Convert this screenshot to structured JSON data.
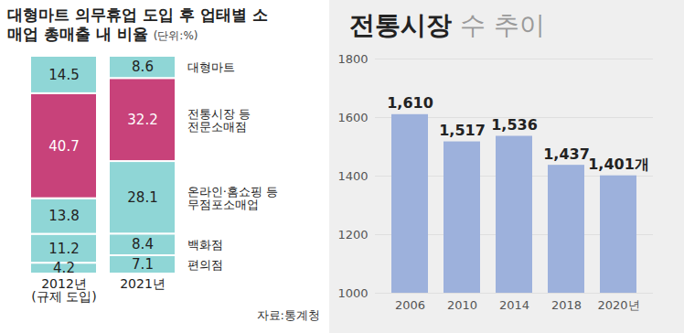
{
  "chart_data": [
    {
      "type": "bar",
      "stacked": true,
      "title": "대형마트 의무휴업 도입 후 업태별 소매업 총매출 내 비율",
      "subtitle": "(단위:%)",
      "source": "자료:통계청",
      "categories": [
        "2012년\n(규제 도입)",
        "2021년"
      ],
      "series": [
        {
          "name": "편의점",
          "color": "#8fd6d6",
          "values": [
            4.2,
            7.1
          ]
        },
        {
          "name": "백화점",
          "color": "#8fd6d6",
          "values": [
            11.2,
            8.4
          ]
        },
        {
          "name": "온라인·홈쇼핑 등 무점포소매업",
          "color": "#8fd6d6",
          "values": [
            13.8,
            28.1
          ]
        },
        {
          "name": "전통시장 등 전문소매점",
          "color": "#c8427a",
          "values": [
            40.7,
            32.2
          ]
        },
        {
          "name": "대형마트",
          "color": "#8fd6d6",
          "values": [
            14.5,
            8.6
          ]
        }
      ],
      "data_labels": true,
      "tick_labels": "x",
      "legend": "right"
    },
    {
      "type": "bar",
      "title": "전통시장 수 추이",
      "categories": [
        "2006",
        "2010",
        "2014",
        "2018",
        "2020년"
      ],
      "values": [
        1610,
        1517,
        1536,
        1437,
        1401
      ],
      "value_labels": [
        "1,610",
        "1,517",
        "1,536",
        "1,437",
        "1,401개"
      ],
      "color": "#9db1dc",
      "ylim": [
        1000,
        1800
      ],
      "yticks": [
        1000,
        1200,
        1400,
        1600,
        1800
      ],
      "grid": true,
      "data_labels": true
    }
  ]
}
